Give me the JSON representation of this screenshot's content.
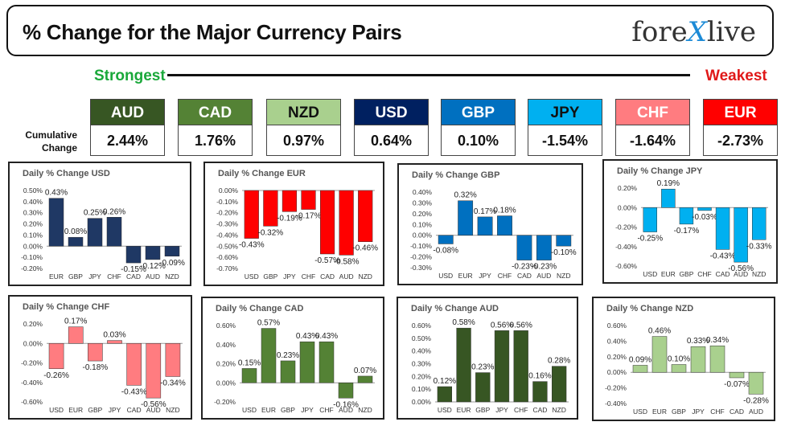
{
  "header": {
    "title": "% Change for the Major Currency Pairs",
    "logo_left": "fore",
    "logo_x": "X",
    "logo_right": "live"
  },
  "strongest_label": "Strongest",
  "weakest_label": "Weakest",
  "cumulative_label_1": "Cumulative",
  "cumulative_label_2": "Change",
  "currencies": [
    {
      "name": "AUD",
      "value": "2.44%",
      "bg": "#375623",
      "fg": "#ffffff"
    },
    {
      "name": "CAD",
      "value": "1.76%",
      "bg": "#548235",
      "fg": "#ffffff"
    },
    {
      "name": "NZD",
      "value": "0.97%",
      "bg": "#a9d08e",
      "fg": "#111111"
    },
    {
      "name": "USD",
      "value": "0.64%",
      "bg": "#002060",
      "fg": "#ffffff"
    },
    {
      "name": "GBP",
      "value": "0.10%",
      "bg": "#0070c0",
      "fg": "#ffffff"
    },
    {
      "name": "JPY",
      "value": "-1.54%",
      "bg": "#00b0f0",
      "fg": "#111111"
    },
    {
      "name": "CHF",
      "value": "-1.64%",
      "bg": "#ff7c80",
      "fg": "#ffffff"
    },
    {
      "name": "EUR",
      "value": "-2.73%",
      "bg": "#ff0000",
      "fg": "#ffffff"
    }
  ],
  "chart_data": [
    {
      "type": "bar",
      "title": "Daily % Change USD",
      "color": "#1f3864",
      "categories": [
        "EUR",
        "GBP",
        "JPY",
        "CHF",
        "CAD",
        "AUD",
        "NZD"
      ],
      "values": [
        0.43,
        0.08,
        0.25,
        0.26,
        -0.15,
        -0.12,
        -0.09
      ],
      "labels": [
        "0.43%",
        "0.08%",
        "0.25%",
        "0.26%",
        "-0.15%",
        "-0.12%",
        "-0.09%"
      ],
      "ylim": [
        -0.2,
        0.5
      ],
      "yticks": [
        0.5,
        0.4,
        0.3,
        0.2,
        0.1,
        0.0,
        -0.1,
        -0.2
      ],
      "ytick_labels": [
        "0.50%",
        "0.40%",
        "0.30%",
        "0.20%",
        "0.10%",
        "0.00%",
        "-0.10%",
        "-0.20%"
      ]
    },
    {
      "type": "bar",
      "title": "Daily % Change EUR",
      "color": "#ff0000",
      "categories": [
        "USD",
        "GBP",
        "JPY",
        "CHF",
        "CAD",
        "AUD",
        "NZD"
      ],
      "values": [
        -0.43,
        -0.32,
        -0.19,
        -0.17,
        -0.57,
        -0.58,
        -0.46
      ],
      "labels": [
        "-0.43%",
        "-0.32%",
        "-0.19%",
        "-0.17%",
        "-0.57%",
        "-0.58%",
        "-0.46%"
      ],
      "ylim": [
        -0.7,
        0.0
      ],
      "yticks": [
        0.0,
        -0.1,
        -0.2,
        -0.3,
        -0.4,
        -0.5,
        -0.6,
        -0.7
      ],
      "ytick_labels": [
        "0.00%",
        "-0.10%",
        "-0.20%",
        "-0.30%",
        "-0.40%",
        "-0.50%",
        "-0.60%",
        "-0.70%"
      ]
    },
    {
      "type": "bar",
      "title": "Daily % Change GBP",
      "color": "#0070c0",
      "categories": [
        "USD",
        "EUR",
        "JPY",
        "CHF",
        "CAD",
        "AUD",
        "NZD"
      ],
      "values": [
        -0.08,
        0.32,
        0.17,
        0.18,
        -0.23,
        -0.23,
        -0.1
      ],
      "labels": [
        "-0.08%",
        "0.32%",
        "0.17%",
        "0.18%",
        "-0.23%",
        "-0.23%",
        "-0.10%"
      ],
      "ylim": [
        -0.3,
        0.4
      ],
      "yticks": [
        0.4,
        0.3,
        0.2,
        0.1,
        0.0,
        -0.1,
        -0.2,
        -0.3
      ],
      "ytick_labels": [
        "0.40%",
        "0.30%",
        "0.20%",
        "0.10%",
        "0.00%",
        "-0.10%",
        "-0.20%",
        "-0.30%"
      ]
    },
    {
      "type": "bar",
      "title": "Daily % Change JPY",
      "color": "#00b0f0",
      "categories": [
        "USD",
        "EUR",
        "GBP",
        "CHF",
        "CAD",
        "AUD",
        "NZD"
      ],
      "values": [
        -0.25,
        0.19,
        -0.17,
        -0.03,
        -0.43,
        -0.56,
        -0.33
      ],
      "labels": [
        "-0.25%",
        "0.19%",
        "-0.17%",
        "-0.03%",
        "-0.43%",
        "-0.56%",
        "-0.33%"
      ],
      "ylim": [
        -0.6,
        0.2
      ],
      "yticks": [
        0.2,
        0.0,
        -0.2,
        -0.4,
        -0.6
      ],
      "ytick_labels": [
        "0.20%",
        "0.00%",
        "-0.20%",
        "-0.40%",
        "-0.60%"
      ]
    },
    {
      "type": "bar",
      "title": "Daily % Change CHF",
      "color": "#ff7c80",
      "categories": [
        "USD",
        "EUR",
        "GBP",
        "JPY",
        "CAD",
        "AUD",
        "NZD"
      ],
      "values": [
        -0.26,
        0.17,
        -0.18,
        0.03,
        -0.43,
        -0.56,
        -0.34
      ],
      "labels": [
        "-0.26%",
        "0.17%",
        "-0.18%",
        "0.03%",
        "-0.43%",
        "-0.56%",
        "-0.34%"
      ],
      "ylim": [
        -0.6,
        0.2
      ],
      "yticks": [
        0.2,
        0.0,
        -0.2,
        -0.4,
        -0.6
      ],
      "ytick_labels": [
        "0.20%",
        "0.00%",
        "-0.20%",
        "-0.40%",
        "-0.60%"
      ]
    },
    {
      "type": "bar",
      "title": "Daily % Change CAD",
      "color": "#548235",
      "categories": [
        "USD",
        "EUR",
        "GBP",
        "JPY",
        "CHF",
        "AUD",
        "NZD"
      ],
      "values": [
        0.15,
        0.57,
        0.23,
        0.43,
        0.43,
        -0.16,
        0.07
      ],
      "labels": [
        "0.15%",
        "0.57%",
        "0.23%",
        "0.43%",
        "0.43%",
        "-0.16%",
        "0.07%"
      ],
      "ylim": [
        -0.2,
        0.6
      ],
      "yticks": [
        0.6,
        0.4,
        0.2,
        0.0,
        -0.2
      ],
      "ytick_labels": [
        "0.60%",
        "0.40%",
        "0.20%",
        "0.00%",
        "-0.20%"
      ]
    },
    {
      "type": "bar",
      "title": "Daily % Change AUD",
      "color": "#375623",
      "categories": [
        "USD",
        "EUR",
        "GBP",
        "JPY",
        "CHF",
        "CAD",
        "NZD"
      ],
      "values": [
        0.12,
        0.58,
        0.23,
        0.56,
        0.56,
        0.16,
        0.28
      ],
      "labels": [
        "0.12%",
        "0.58%",
        "0.23%",
        "0.56%",
        "0.56%",
        "0.16%",
        "0.28%"
      ],
      "ylim": [
        0.0,
        0.6
      ],
      "yticks": [
        0.6,
        0.5,
        0.4,
        0.3,
        0.2,
        0.1,
        0.0
      ],
      "ytick_labels": [
        "0.60%",
        "0.50%",
        "0.40%",
        "0.30%",
        "0.20%",
        "0.10%",
        "0.00%"
      ]
    },
    {
      "type": "bar",
      "title": "Daily % Change NZD",
      "color": "#a9d08e",
      "categories": [
        "USD",
        "EUR",
        "GBP",
        "JPY",
        "CHF",
        "CAD",
        "AUD"
      ],
      "values": [
        0.09,
        0.46,
        0.1,
        0.33,
        0.34,
        -0.07,
        -0.28
      ],
      "labels": [
        "0.09%",
        "0.46%",
        "0.10%",
        "0.33%",
        "0.34%",
        "-0.07%",
        "-0.28%"
      ],
      "ylim": [
        -0.4,
        0.6
      ],
      "yticks": [
        0.6,
        0.4,
        0.2,
        0.0,
        -0.2,
        -0.4
      ],
      "ytick_labels": [
        "0.60%",
        "0.40%",
        "0.20%",
        "0.00%",
        "-0.20%",
        "-0.40%"
      ]
    }
  ]
}
